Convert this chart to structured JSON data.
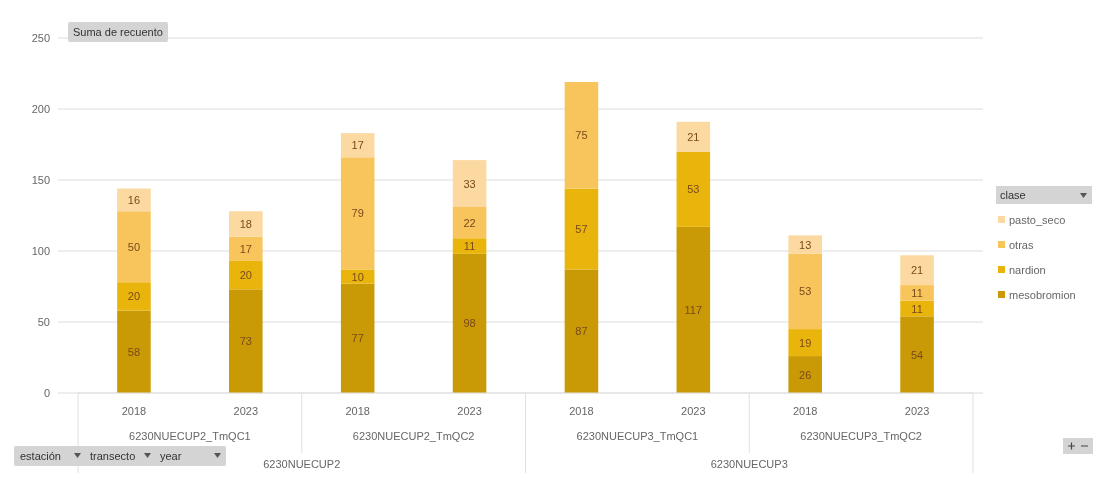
{
  "chart_data": {
    "type": "bar",
    "stacked": true,
    "title": "Suma de recuento",
    "legend_title": "clase",
    "categories": [
      "2018",
      "2023",
      "2018",
      "2023",
      "2018",
      "2023",
      "2018",
      "2023"
    ],
    "series": [
      {
        "name": "mesobromion",
        "color": "#c99a06",
        "values": [
          58,
          73,
          77,
          98,
          87,
          117,
          26,
          54
        ]
      },
      {
        "name": "nardion",
        "color": "#e9b50c",
        "values": [
          20,
          20,
          10,
          11,
          57,
          53,
          19,
          11
        ]
      },
      {
        "name": "otras",
        "color": "#f8c55c",
        "values": [
          50,
          17,
          79,
          22,
          75,
          null,
          53,
          11
        ]
      },
      {
        "name": "pasto_seco",
        "color": "#fbd9a0",
        "values": [
          16,
          18,
          17,
          33,
          null,
          21,
          13,
          21
        ]
      }
    ],
    "ylim": [
      0,
      250
    ],
    "yticks": [
      0,
      50,
      100,
      150,
      200,
      250
    ],
    "grid": "y",
    "legend": "right",
    "data_labels": true,
    "annotations": [
      "6230NUECUP2_TmQC1",
      "6230NUECUP2_TmQC2",
      "6230NUECUP3_TmQC1",
      "6230NUECUP3_TmQC2",
      "6230NUECUP2",
      "6230NUECUP3",
      "estación",
      "transecto",
      "year"
    ]
  }
}
